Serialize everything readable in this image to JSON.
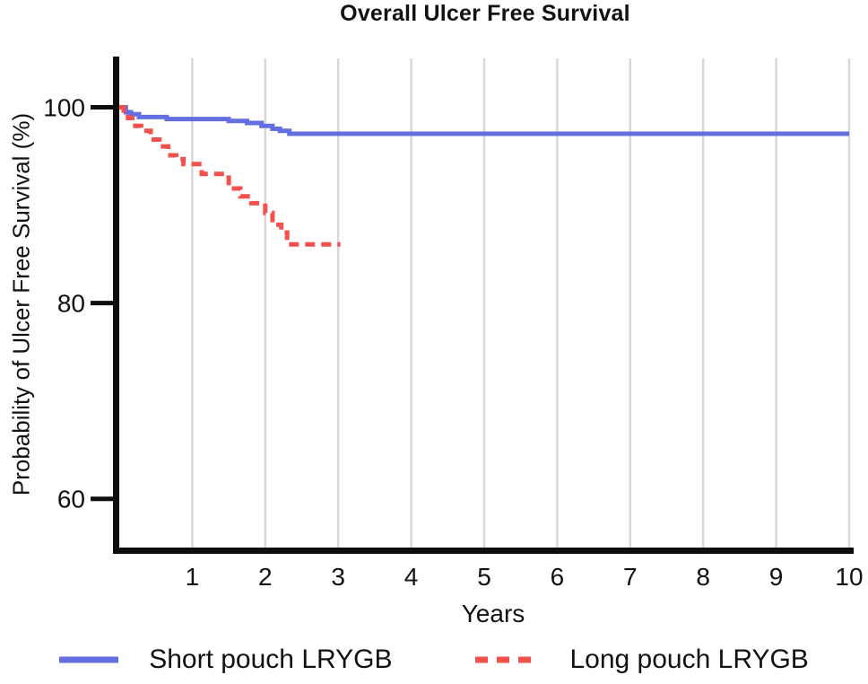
{
  "chart_data": {
    "type": "line",
    "subtype": "kaplan-meier-step-curve",
    "title": "Overall Ulcer Free Survival",
    "xlabel": "Years",
    "ylabel": "Probability of Ulcer Free Survival (%)",
    "xlim": [
      0,
      10
    ],
    "ylim": [
      54.7,
      105
    ],
    "x_ticks": [
      1,
      2,
      3,
      4,
      5,
      6,
      7,
      8,
      9,
      10
    ],
    "y_ticks": [
      100,
      80,
      60
    ],
    "grid": "vertical-only",
    "grid_color": "#d8d8d8",
    "axis_color": "#0d0d0d",
    "legend_position": "bottom",
    "series": [
      {
        "name": "Short pouch LRYGB",
        "color": "#636ee1",
        "line_style": "solid",
        "step": true,
        "points": [
          [
            0,
            100
          ],
          [
            0.09,
            99.5
          ],
          [
            0.16,
            99.3
          ],
          [
            0.27,
            99.0
          ],
          [
            0.65,
            98.8
          ],
          [
            1.5,
            98.6
          ],
          [
            1.75,
            98.4
          ],
          [
            1.95,
            98.1
          ],
          [
            2.1,
            97.8
          ],
          [
            2.2,
            97.6
          ],
          [
            2.33,
            97.3
          ],
          [
            10,
            97.3
          ]
        ]
      },
      {
        "name": "Long pouch LRYGB",
        "color": "#f3514d",
        "line_style": "dashed",
        "step": true,
        "points": [
          [
            0,
            100
          ],
          [
            0.06,
            99.4
          ],
          [
            0.12,
            98.9
          ],
          [
            0.22,
            98.1
          ],
          [
            0.3,
            97.6
          ],
          [
            0.43,
            96.7
          ],
          [
            0.55,
            96.0
          ],
          [
            0.67,
            95.1
          ],
          [
            0.78,
            94.7
          ],
          [
            0.88,
            94.2
          ],
          [
            1.13,
            93.2
          ],
          [
            1.5,
            91.7
          ],
          [
            1.66,
            90.9
          ],
          [
            1.81,
            90.2
          ],
          [
            2.0,
            89.2
          ],
          [
            2.1,
            88.0
          ],
          [
            2.22,
            87.2
          ],
          [
            2.3,
            86.0
          ],
          [
            3.03,
            86.0
          ]
        ]
      }
    ]
  }
}
